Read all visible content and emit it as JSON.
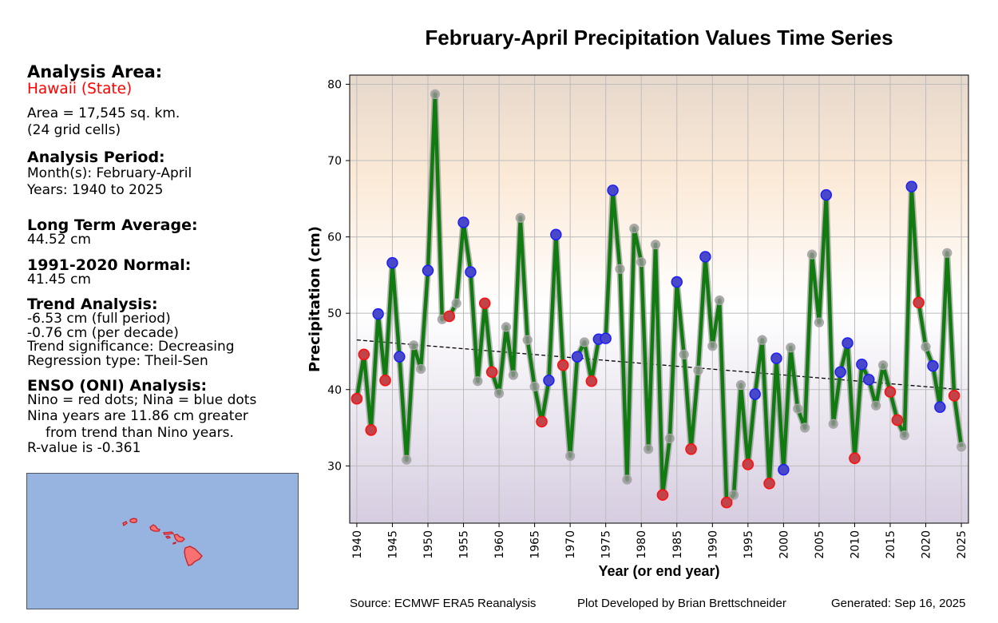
{
  "left_panel": {
    "analysis_area_heading": "Analysis Area:",
    "area_name": "Hawaii (State)",
    "area_size": "Area = 17,545 sq. km.",
    "grid_cells": "(24 grid cells)",
    "analysis_period_heading": "Analysis Period:",
    "months": "Month(s): February-April",
    "years": "Years: 1940 to 2025",
    "long_term_avg_heading": "Long Term Average:",
    "long_term_avg_value": "44.52 cm",
    "normal_heading": "1991-2020 Normal:",
    "normal_value": "41.45 cm",
    "trend_heading": "Trend Analysis:",
    "trend_full": "-6.53 cm (full period)",
    "trend_decade": "-0.76 cm (per decade)",
    "trend_significance": "Trend significance: Decreasing",
    "regression_type": "Regression type: Theil-Sen",
    "enso_heading": "ENSO (ONI) Analysis:",
    "enso_legend": "Nino = red dots; Nina = blue dots",
    "enso_line1": "Nina years are 11.86 cm greater",
    "enso_line2": "from trend than Nino years.",
    "enso_r": "R-value is -0.361"
  },
  "map": {
    "ocean_color": "#97b4e1",
    "land_color": "#f87171",
    "outline_color": "#c8202a"
  },
  "footer": {
    "source": "Source: ECMWF ERA5 Reanalysis",
    "developer": "Plot Developed by Brian Brettschneider",
    "generated": "Generated: Sep 16, 2025"
  },
  "colors": {
    "line": "#117a11",
    "nino": "#d62728",
    "nina": "#2020d0",
    "neutral": "#a0a0a0",
    "grid": "#bdbdbd",
    "bg_top": "#e6d8cc",
    "bg_upper": "#fbe9d6",
    "bg_mid": "#ffffff",
    "bg_bottom": "#d6cde0"
  },
  "chart_data": {
    "type": "line",
    "title": "February-April Precipitation Values Time Series",
    "xlabel": "Year (or end year)",
    "ylabel": "Precipitation (cm)",
    "xlim": [
      1939,
      2026
    ],
    "ylim": [
      22.5,
      81.2
    ],
    "xticks": [
      1940,
      1945,
      1950,
      1955,
      1960,
      1965,
      1970,
      1975,
      1980,
      1985,
      1990,
      1995,
      2000,
      2005,
      2010,
      2015,
      2020,
      2025
    ],
    "yticks": [
      30,
      40,
      50,
      60,
      70,
      80
    ],
    "grid": true,
    "legend": "none",
    "x": [
      1940,
      1941,
      1942,
      1943,
      1944,
      1945,
      1946,
      1947,
      1948,
      1949,
      1950,
      1951,
      1952,
      1953,
      1954,
      1955,
      1956,
      1957,
      1958,
      1959,
      1960,
      1961,
      1962,
      1963,
      1964,
      1965,
      1966,
      1967,
      1968,
      1969,
      1970,
      1971,
      1972,
      1973,
      1974,
      1975,
      1976,
      1977,
      1978,
      1979,
      1980,
      1981,
      1982,
      1983,
      1984,
      1985,
      1986,
      1987,
      1988,
      1989,
      1990,
      1991,
      1992,
      1993,
      1994,
      1995,
      1996,
      1997,
      1998,
      1999,
      2000,
      2001,
      2002,
      2003,
      2004,
      2005,
      2006,
      2007,
      2008,
      2009,
      2010,
      2011,
      2012,
      2013,
      2014,
      2015,
      2016,
      2017,
      2018,
      2019,
      2020,
      2021,
      2022,
      2023,
      2024,
      2025
    ],
    "series": [
      {
        "name": "Precipitation",
        "values": [
          38.8,
          44.6,
          34.7,
          49.9,
          41.2,
          56.6,
          44.3,
          30.8,
          45.8,
          42.7,
          55.6,
          78.7,
          49.2,
          49.6,
          51.3,
          61.9,
          55.4,
          41.1,
          51.3,
          42.3,
          39.5,
          48.2,
          41.9,
          62.5,
          46.5,
          40.4,
          35.8,
          41.2,
          60.3,
          43.2,
          31.3,
          44.3,
          46.2,
          41.1,
          46.6,
          46.7,
          66.1,
          55.8,
          28.2,
          61.1,
          56.7,
          32.2,
          59.0,
          26.2,
          33.6,
          54.1,
          44.6,
          32.2,
          42.5,
          57.4,
          45.7,
          51.7,
          25.2,
          26.2,
          40.6,
          30.2,
          39.4,
          46.5,
          27.7,
          44.1,
          29.5,
          45.5,
          37.5,
          35.0,
          57.7,
          48.8,
          65.5,
          35.5,
          42.3,
          46.1,
          31.0,
          43.3,
          41.3,
          37.9,
          43.2,
          39.7,
          36.0,
          34.0,
          66.6,
          51.4,
          45.6,
          43.1,
          37.7,
          57.9,
          39.2,
          32.5
        ],
        "enso": [
          "nino",
          "nino",
          "nino",
          "nina",
          "nino",
          "nina",
          "nina",
          "neutral",
          "neutral",
          "neutral",
          "nina",
          "neutral",
          "neutral",
          "nino",
          "neutral",
          "nina",
          "nina",
          "neutral",
          "nino",
          "nino",
          "neutral",
          "neutral",
          "neutral",
          "neutral",
          "neutral",
          "neutral",
          "nino",
          "nina",
          "nina",
          "nino",
          "neutral",
          "nina",
          "neutral",
          "nino",
          "nina",
          "nina",
          "nina",
          "neutral",
          "neutral",
          "neutral",
          "neutral",
          "neutral",
          "neutral",
          "nino",
          "neutral",
          "nina",
          "neutral",
          "nino",
          "neutral",
          "nina",
          "neutral",
          "neutral",
          "nino",
          "neutral",
          "neutral",
          "nino",
          "nina",
          "neutral",
          "nino",
          "nina",
          "nina",
          "neutral",
          "neutral",
          "neutral",
          "neutral",
          "neutral",
          "nina",
          "neutral",
          "nina",
          "nina",
          "nino",
          "nina",
          "nina",
          "neutral",
          "neutral",
          "nino",
          "nino",
          "neutral",
          "nina",
          "nino",
          "neutral",
          "nina",
          "nina",
          "neutral",
          "nino",
          "neutral"
        ]
      }
    ],
    "trend": {
      "name": "Theil-Sen trend",
      "x": [
        1940,
        2025
      ],
      "y": [
        46.5,
        40.0
      ],
      "style": "dashed"
    }
  }
}
